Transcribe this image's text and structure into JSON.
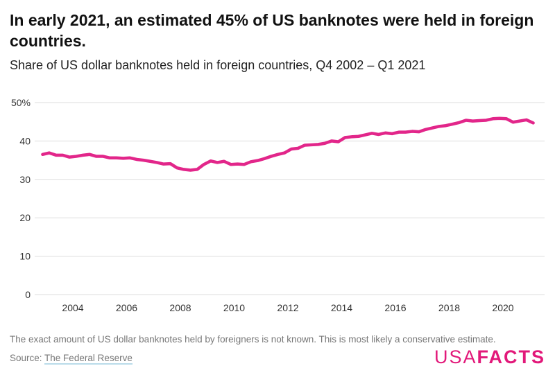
{
  "title": "In early 2021, an estimated 45% of US banknotes were held in foreign countries.",
  "subtitle": "Share of US dollar banknotes held in foreign countries, Q4 2002 – Q1 2021",
  "note": "The exact amount of US dollar banknotes held by foreigners is not known. This is most likely a conservative estimate.",
  "source_label": "Source:",
  "source_link": "The Federal Reserve",
  "logo": {
    "left": "USA",
    "right": "FACTS"
  },
  "colors": {
    "line": "#e2268a",
    "grid": "#dddddd",
    "brand": "#e2197a"
  },
  "chart_data": {
    "type": "line",
    "title": "",
    "xlabel": "",
    "ylabel": "",
    "ylim": [
      0,
      50
    ],
    "grid": true,
    "yticks": [
      "0",
      "10",
      "20",
      "30",
      "40",
      "50%"
    ],
    "ytick_values": [
      0,
      10,
      20,
      30,
      40,
      50
    ],
    "xticks": [
      "2004",
      "2006",
      "2008",
      "2010",
      "2012",
      "2014",
      "2016",
      "2018",
      "2020"
    ],
    "x": [
      "Q4 2002",
      "Q1 2003",
      "Q2 2003",
      "Q3 2003",
      "Q4 2003",
      "Q1 2004",
      "Q2 2004",
      "Q3 2004",
      "Q4 2004",
      "Q1 2005",
      "Q2 2005",
      "Q3 2005",
      "Q4 2005",
      "Q1 2006",
      "Q2 2006",
      "Q3 2006",
      "Q4 2006",
      "Q1 2007",
      "Q2 2007",
      "Q3 2007",
      "Q4 2007",
      "Q1 2008",
      "Q2 2008",
      "Q3 2008",
      "Q4 2008",
      "Q1 2009",
      "Q2 2009",
      "Q3 2009",
      "Q4 2009",
      "Q1 2010",
      "Q2 2010",
      "Q3 2010",
      "Q4 2010",
      "Q1 2011",
      "Q2 2011",
      "Q3 2011",
      "Q4 2011",
      "Q1 2012",
      "Q2 2012",
      "Q3 2012",
      "Q4 2012",
      "Q1 2013",
      "Q2 2013",
      "Q3 2013",
      "Q4 2013",
      "Q1 2014",
      "Q2 2014",
      "Q3 2014",
      "Q4 2014",
      "Q1 2015",
      "Q2 2015",
      "Q3 2015",
      "Q4 2015",
      "Q1 2016",
      "Q2 2016",
      "Q3 2016",
      "Q4 2016",
      "Q1 2017",
      "Q2 2017",
      "Q3 2017",
      "Q4 2017",
      "Q1 2018",
      "Q2 2018",
      "Q3 2018",
      "Q4 2018",
      "Q1 2019",
      "Q2 2019",
      "Q3 2019",
      "Q4 2019",
      "Q1 2020",
      "Q2 2020",
      "Q3 2020",
      "Q4 2020",
      "Q1 2021"
    ],
    "series": [
      {
        "values": [
          36.5,
          36.9,
          36.3,
          36.3,
          35.8,
          36.0,
          36.3,
          36.5,
          36.0,
          36.0,
          35.6,
          35.6,
          35.5,
          35.6,
          35.2,
          35.0,
          34.7,
          34.4,
          34.0,
          34.1,
          33.0,
          32.6,
          32.4,
          32.6,
          33.9,
          34.8,
          34.4,
          34.7,
          33.9,
          34.0,
          33.9,
          34.6,
          34.9,
          35.4,
          36.0,
          36.5,
          36.9,
          37.9,
          38.1,
          38.9,
          39.0,
          39.1,
          39.4,
          40.0,
          39.8,
          40.9,
          41.1,
          41.2,
          41.6,
          42.0,
          41.7,
          42.1,
          41.9,
          42.3,
          42.3,
          42.5,
          42.4,
          43.0,
          43.4,
          43.8,
          44.0,
          44.4,
          44.8,
          45.4,
          45.2,
          45.3,
          45.4,
          45.8,
          45.9,
          45.8,
          44.9,
          45.2,
          45.5,
          44.7
        ]
      }
    ]
  }
}
